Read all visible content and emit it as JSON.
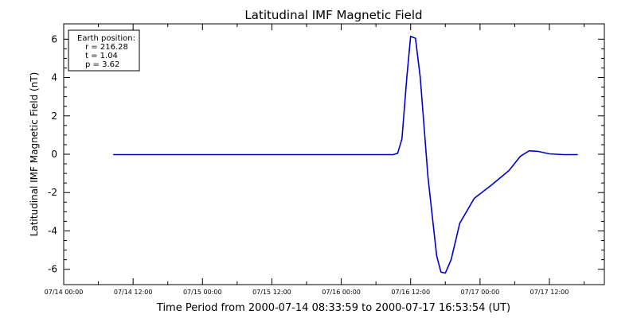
{
  "chart_data": {
    "type": "line",
    "title": "Latitudinal IMF Magnetic Field",
    "xlabel": "Time Period from 2000-07-14 08:33:59 to 2000-07-17 16:53:54 (UT)",
    "ylabel": "Latitudinal IMF Magnetic Field (nT)",
    "xlim": [
      "2000-07-14T00:00",
      "2000-07-17T21:30"
    ],
    "ylim": [
      -6.8,
      6.8
    ],
    "yticks": [
      -6,
      -4,
      -2,
      0,
      2,
      4,
      6
    ],
    "xticks": [
      {
        "t": "2000-07-14T00:00",
        "label": "07/14 00:00"
      },
      {
        "t": "2000-07-14T12:00",
        "label": "07/14 12:00"
      },
      {
        "t": "2000-07-15T00:00",
        "label": "07/15 00:00"
      },
      {
        "t": "2000-07-15T12:00",
        "label": "07/15 12:00"
      },
      {
        "t": "2000-07-16T00:00",
        "label": "07/16 00:00"
      },
      {
        "t": "2000-07-16T12:00",
        "label": "07/16 12:00"
      },
      {
        "t": "2000-07-17T00:00",
        "label": "07/17 00:00"
      },
      {
        "t": "2000-07-17T12:00",
        "label": "07/17 12:00"
      }
    ],
    "grid": false,
    "series": [
      {
        "color": "#0000cc",
        "points": [
          [
            "2000-07-14T08:34",
            -0.02
          ],
          [
            "2000-07-15T00:00",
            -0.02
          ],
          [
            "2000-07-15T12:00",
            -0.02
          ],
          [
            "2000-07-16T00:00",
            -0.02
          ],
          [
            "2000-07-16T09:00",
            -0.02
          ],
          [
            "2000-07-16T09:45",
            0.05
          ],
          [
            "2000-07-16T10:30",
            0.8
          ],
          [
            "2000-07-16T11:20",
            4.0
          ],
          [
            "2000-07-16T12:00",
            6.15
          ],
          [
            "2000-07-16T12:50",
            6.05
          ],
          [
            "2000-07-16T13:40",
            4.0
          ],
          [
            "2000-07-16T15:00",
            -1.2
          ],
          [
            "2000-07-16T16:30",
            -5.3
          ],
          [
            "2000-07-16T17:15",
            -6.15
          ],
          [
            "2000-07-16T18:00",
            -6.2
          ],
          [
            "2000-07-16T19:00",
            -5.5
          ],
          [
            "2000-07-16T20:30",
            -3.6
          ],
          [
            "2000-07-16T23:00",
            -2.3
          ],
          [
            "2000-07-17T02:00",
            -1.6
          ],
          [
            "2000-07-17T05:00",
            -0.85
          ],
          [
            "2000-07-17T07:00",
            -0.1
          ],
          [
            "2000-07-17T08:30",
            0.18
          ],
          [
            "2000-07-17T10:00",
            0.15
          ],
          [
            "2000-07-17T12:00",
            0.02
          ],
          [
            "2000-07-17T14:30",
            -0.02
          ],
          [
            "2000-07-17T16:54",
            -0.02
          ]
        ]
      }
    ],
    "annotation": {
      "heading": "Earth position:",
      "lines": [
        "r = 216.28",
        "t = 1.04",
        "p = 3.62"
      ],
      "placement": "top-left"
    }
  }
}
